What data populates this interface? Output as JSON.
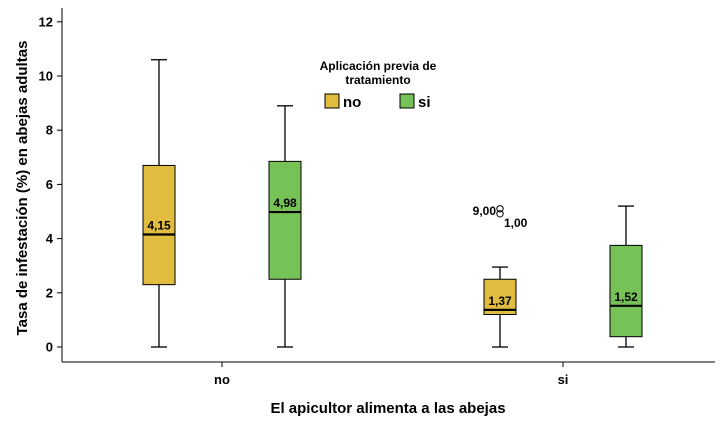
{
  "chart_data": {
    "type": "boxplot",
    "title": "",
    "xlabel": "El apicultor alimenta a las abejas",
    "ylabel": "Tasa de infestación (%) en abejas adultas",
    "ylim": [
      0,
      12
    ],
    "yticks": [
      0,
      2,
      4,
      6,
      8,
      10,
      12
    ],
    "ytick_labels": [
      "0",
      "2",
      "4",
      "6",
      "8",
      "10",
      "12"
    ],
    "categories": [
      "no",
      "si"
    ],
    "legend": {
      "title": "Aplicación previa de tratamiento",
      "title_lines": [
        "Aplicación previa de",
        "tratamiento"
      ],
      "position": "top-center"
    },
    "series": [
      {
        "name": "no",
        "color": "#e1bd3f",
        "boxes": [
          {
            "category": "no",
            "min": 0.0,
            "q1": 2.3,
            "median": 4.15,
            "q3": 6.7,
            "max": 10.6,
            "median_label": "4,15",
            "outliers": []
          },
          {
            "category": "si",
            "min": 0.0,
            "q1": 1.2,
            "median": 1.37,
            "q3": 2.5,
            "max": 2.95,
            "median_label": "1,37",
            "outliers": [
              {
                "value": 5.1,
                "label_lines": [
                  "9,00",
                  "1,00"
                ]
              }
            ]
          }
        ]
      },
      {
        "name": "si",
        "color": "#77c257",
        "boxes": [
          {
            "category": "no",
            "min": 0.0,
            "q1": 2.5,
            "median": 4.98,
            "q3": 6.85,
            "max": 8.9,
            "median_label": "4,98",
            "outliers": []
          },
          {
            "category": "si",
            "min": 0.0,
            "q1": 0.38,
            "median": 1.52,
            "q3": 3.75,
            "max": 5.2,
            "median_label": "1,52",
            "outliers": []
          }
        ]
      }
    ],
    "grid": false
  }
}
